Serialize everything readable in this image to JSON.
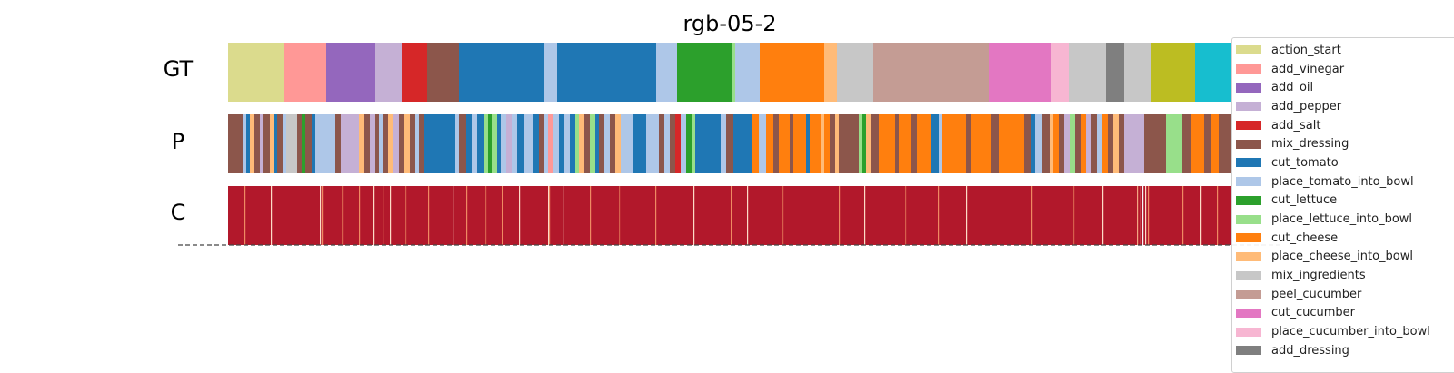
{
  "chart_data": {
    "type": "segmentation-timeline",
    "title": "rgb-05-2",
    "rows": [
      "GT",
      "P",
      "C"
    ],
    "legend": [
      {
        "label": "action_start",
        "color": "#dbdb8d"
      },
      {
        "label": "add_vinegar",
        "color": "#ff9896"
      },
      {
        "label": "add_oil",
        "color": "#9467bd"
      },
      {
        "label": "add_pepper",
        "color": "#c5b0d5"
      },
      {
        "label": "add_salt",
        "color": "#d62728"
      },
      {
        "label": "mix_dressing",
        "color": "#8c564b"
      },
      {
        "label": "cut_tomato",
        "color": "#1f77b4"
      },
      {
        "label": "place_tomato_into_bowl",
        "color": "#aec7e8"
      },
      {
        "label": "cut_lettuce",
        "color": "#2ca02c"
      },
      {
        "label": "place_lettuce_into_bowl",
        "color": "#98df8a"
      },
      {
        "label": "cut_cheese",
        "color": "#ff7f0e"
      },
      {
        "label": "place_cheese_into_bowl",
        "color": "#ffbb78"
      },
      {
        "label": "mix_ingredients",
        "color": "#c7c7c7"
      },
      {
        "label": "peel_cucumber",
        "color": "#c49c94"
      },
      {
        "label": "cut_cucumber",
        "color": "#e377c2"
      },
      {
        "label": "place_cucumber_into_bowl",
        "color": "#f7b6d2"
      },
      {
        "label": "add_dressing",
        "color": "#7f7f7f"
      }
    ],
    "gt_segments": [
      {
        "start": 0,
        "end": 62,
        "label": "action_start"
      },
      {
        "start": 62,
        "end": 108,
        "label": "add_vinegar"
      },
      {
        "start": 108,
        "end": 162,
        "label": "add_oil"
      },
      {
        "start": 162,
        "end": 191,
        "label": "add_pepper"
      },
      {
        "start": 191,
        "end": 219,
        "label": "add_salt"
      },
      {
        "start": 219,
        "end": 254,
        "label": "mix_dressing"
      },
      {
        "start": 254,
        "end": 348,
        "label": "cut_tomato"
      },
      {
        "start": 348,
        "end": 362,
        "label": "place_tomato_into_bowl"
      },
      {
        "start": 362,
        "end": 471,
        "label": "cut_tomato"
      },
      {
        "start": 471,
        "end": 494,
        "label": "place_tomato_into_bowl"
      },
      {
        "start": 494,
        "end": 555,
        "label": "cut_lettuce"
      },
      {
        "start": 555,
        "end": 558,
        "label": "place_lettuce_into_bowl"
      },
      {
        "start": 558,
        "end": 585,
        "label": "place_tomato_into_bowl"
      },
      {
        "start": 585,
        "end": 656,
        "label": "cut_cheese"
      },
      {
        "start": 656,
        "end": 670,
        "label": "place_cheese_into_bowl"
      },
      {
        "start": 670,
        "end": 710,
        "label": "mix_ingredients"
      },
      {
        "start": 710,
        "end": 837,
        "label": "peel_cucumber"
      },
      {
        "start": 837,
        "end": 906,
        "label": "cut_cucumber"
      },
      {
        "start": 906,
        "end": 925,
        "label": "place_cucumber_into_bowl"
      },
      {
        "start": 925,
        "end": 966,
        "label": "mix_ingredients"
      },
      {
        "start": 966,
        "end": 986,
        "label": "add_dressing"
      },
      {
        "start": 986,
        "end": 1016,
        "label": "mix_ingredients"
      },
      {
        "start": 1016,
        "end": 1064,
        "label": "unlisted-olive"
      },
      {
        "start": 1064,
        "end": 1105,
        "label": "unlisted-cyan"
      }
    ],
    "p_segments": [
      {
        "start": 0,
        "end": 16,
        "label": "mix_dressing"
      },
      {
        "start": 16,
        "end": 20,
        "label": "place_tomato_into_bowl"
      },
      {
        "start": 20,
        "end": 24,
        "label": "cut_tomato"
      },
      {
        "start": 24,
        "end": 28,
        "label": "place_cheese_into_bowl"
      },
      {
        "start": 28,
        "end": 35,
        "label": "mix_dressing"
      },
      {
        "start": 35,
        "end": 38,
        "label": "add_pepper"
      },
      {
        "start": 38,
        "end": 46,
        "label": "mix_dressing"
      },
      {
        "start": 46,
        "end": 50,
        "label": "place_cheese_into_bowl"
      },
      {
        "start": 50,
        "end": 54,
        "label": "cut_tomato"
      },
      {
        "start": 54,
        "end": 60,
        "label": "mix_dressing"
      },
      {
        "start": 60,
        "end": 64,
        "label": "place_tomato_into_bowl"
      },
      {
        "start": 64,
        "end": 76,
        "label": "mix_ingredients"
      },
      {
        "start": 76,
        "end": 81,
        "label": "mix_dressing"
      },
      {
        "start": 81,
        "end": 85,
        "label": "cut_lettuce"
      },
      {
        "start": 85,
        "end": 92,
        "label": "mix_dressing"
      },
      {
        "start": 92,
        "end": 96,
        "label": "cut_tomato"
      },
      {
        "start": 96,
        "end": 100,
        "label": "place_tomato_into_bowl"
      },
      {
        "start": 100,
        "end": 118,
        "label": "place_tomato_into_bowl"
      },
      {
        "start": 118,
        "end": 124,
        "label": "mix_dressing"
      },
      {
        "start": 124,
        "end": 144,
        "label": "add_pepper"
      },
      {
        "start": 144,
        "end": 150,
        "label": "place_cheese_into_bowl"
      },
      {
        "start": 150,
        "end": 156,
        "label": "mix_dressing"
      },
      {
        "start": 156,
        "end": 162,
        "label": "add_pepper"
      },
      {
        "start": 162,
        "end": 166,
        "label": "mix_dressing"
      },
      {
        "start": 166,
        "end": 170,
        "label": "place_tomato_into_bowl"
      },
      {
        "start": 170,
        "end": 176,
        "label": "mix_dressing"
      },
      {
        "start": 176,
        "end": 182,
        "label": "place_cheese_into_bowl"
      },
      {
        "start": 182,
        "end": 188,
        "label": "add_pepper"
      },
      {
        "start": 188,
        "end": 194,
        "label": "mix_dressing"
      },
      {
        "start": 194,
        "end": 200,
        "label": "place_cheese_into_bowl"
      },
      {
        "start": 200,
        "end": 206,
        "label": "mix_dressing"
      },
      {
        "start": 206,
        "end": 210,
        "label": "place_tomato_into_bowl"
      },
      {
        "start": 210,
        "end": 216,
        "label": "mix_dressing"
      },
      {
        "start": 216,
        "end": 250,
        "label": "cut_tomato"
      },
      {
        "start": 250,
        "end": 254,
        "label": "place_tomato_into_bowl"
      },
      {
        "start": 254,
        "end": 262,
        "label": "mix_dressing"
      },
      {
        "start": 262,
        "end": 268,
        "label": "cut_tomato"
      },
      {
        "start": 268,
        "end": 274,
        "label": "place_tomato_into_bowl"
      },
      {
        "start": 274,
        "end": 282,
        "label": "cut_tomato"
      },
      {
        "start": 282,
        "end": 286,
        "label": "place_lettuce_into_bowl"
      },
      {
        "start": 286,
        "end": 290,
        "label": "cut_lettuce"
      },
      {
        "start": 290,
        "end": 296,
        "label": "place_lettuce_into_bowl"
      },
      {
        "start": 296,
        "end": 300,
        "label": "cut_tomato"
      },
      {
        "start": 300,
        "end": 306,
        "label": "place_tomato_into_bowl"
      },
      {
        "start": 306,
        "end": 312,
        "label": "add_pepper"
      },
      {
        "start": 312,
        "end": 318,
        "label": "place_tomato_into_bowl"
      },
      {
        "start": 318,
        "end": 326,
        "label": "cut_tomato"
      },
      {
        "start": 326,
        "end": 336,
        "label": "place_tomato_into_bowl"
      },
      {
        "start": 336,
        "end": 342,
        "label": "cut_tomato"
      },
      {
        "start": 342,
        "end": 348,
        "label": "mix_dressing"
      },
      {
        "start": 348,
        "end": 352,
        "label": "place_tomato_into_bowl"
      },
      {
        "start": 352,
        "end": 358,
        "label": "add_vinegar"
      },
      {
        "start": 358,
        "end": 364,
        "label": "place_tomato_into_bowl"
      },
      {
        "start": 364,
        "end": 370,
        "label": "cut_tomato"
      },
      {
        "start": 370,
        "end": 376,
        "label": "place_tomato_into_bowl"
      },
      {
        "start": 376,
        "end": 382,
        "label": "cut_tomato"
      },
      {
        "start": 382,
        "end": 386,
        "label": "place_lettuce_into_bowl"
      },
      {
        "start": 386,
        "end": 392,
        "label": "place_cheese_into_bowl"
      },
      {
        "start": 392,
        "end": 398,
        "label": "mix_dressing"
      },
      {
        "start": 398,
        "end": 404,
        "label": "place_lettuce_into_bowl"
      },
      {
        "start": 404,
        "end": 408,
        "label": "cut_tomato"
      },
      {
        "start": 408,
        "end": 414,
        "label": "mix_dressing"
      },
      {
        "start": 414,
        "end": 420,
        "label": "place_tomato_into_bowl"
      },
      {
        "start": 420,
        "end": 426,
        "label": "mix_dressing"
      },
      {
        "start": 426,
        "end": 432,
        "label": "place_cheese_into_bowl"
      },
      {
        "start": 432,
        "end": 446,
        "label": "place_tomato_into_bowl"
      },
      {
        "start": 446,
        "end": 460,
        "label": "cut_tomato"
      },
      {
        "start": 460,
        "end": 474,
        "label": "place_tomato_into_bowl"
      },
      {
        "start": 474,
        "end": 480,
        "label": "mix_dressing"
      },
      {
        "start": 480,
        "end": 486,
        "label": "place_tomato_into_bowl"
      },
      {
        "start": 486,
        "end": 492,
        "label": "mix_dressing"
      },
      {
        "start": 492,
        "end": 498,
        "label": "add_salt"
      },
      {
        "start": 498,
        "end": 504,
        "label": "place_tomato_into_bowl"
      },
      {
        "start": 504,
        "end": 510,
        "label": "cut_lettuce"
      },
      {
        "start": 510,
        "end": 514,
        "label": "place_lettuce_into_bowl"
      },
      {
        "start": 514,
        "end": 542,
        "label": "cut_tomato"
      },
      {
        "start": 542,
        "end": 548,
        "label": "place_tomato_into_bowl"
      },
      {
        "start": 548,
        "end": 556,
        "label": "mix_dressing"
      },
      {
        "start": 556,
        "end": 576,
        "label": "cut_tomato"
      },
      {
        "start": 576,
        "end": 584,
        "label": "cut_cheese"
      },
      {
        "start": 584,
        "end": 592,
        "label": "place_tomato_into_bowl"
      },
      {
        "start": 592,
        "end": 600,
        "label": "cut_cheese"
      },
      {
        "start": 600,
        "end": 606,
        "label": "mix_dressing"
      },
      {
        "start": 606,
        "end": 618,
        "label": "cut_cheese"
      },
      {
        "start": 618,
        "end": 622,
        "label": "mix_dressing"
      },
      {
        "start": 622,
        "end": 636,
        "label": "cut_cheese"
      },
      {
        "start": 636,
        "end": 640,
        "label": "cut_tomato"
      },
      {
        "start": 640,
        "end": 652,
        "label": "cut_cheese"
      },
      {
        "start": 652,
        "end": 656,
        "label": "place_cheese_into_bowl"
      },
      {
        "start": 656,
        "end": 662,
        "label": "cut_cheese"
      },
      {
        "start": 662,
        "end": 668,
        "label": "mix_dressing"
      },
      {
        "start": 668,
        "end": 672,
        "label": "place_cheese_into_bowl"
      },
      {
        "start": 672,
        "end": 694,
        "label": "mix_dressing"
      },
      {
        "start": 694,
        "end": 698,
        "label": "place_lettuce_into_bowl"
      },
      {
        "start": 698,
        "end": 702,
        "label": "cut_lettuce"
      },
      {
        "start": 702,
        "end": 708,
        "label": "place_cheese_into_bowl"
      },
      {
        "start": 708,
        "end": 716,
        "label": "mix_dressing"
      },
      {
        "start": 716,
        "end": 734,
        "label": "cut_cheese"
      },
      {
        "start": 734,
        "end": 738,
        "label": "mix_dressing"
      },
      {
        "start": 738,
        "end": 752,
        "label": "cut_cheese"
      },
      {
        "start": 752,
        "end": 758,
        "label": "mix_dressing"
      },
      {
        "start": 758,
        "end": 774,
        "label": "cut_cheese"
      },
      {
        "start": 774,
        "end": 782,
        "label": "cut_tomato"
      },
      {
        "start": 782,
        "end": 786,
        "label": "place_tomato_into_bowl"
      },
      {
        "start": 786,
        "end": 812,
        "label": "cut_cheese"
      },
      {
        "start": 812,
        "end": 818,
        "label": "mix_dressing"
      },
      {
        "start": 818,
        "end": 840,
        "label": "cut_cheese"
      },
      {
        "start": 840,
        "end": 848,
        "label": "mix_dressing"
      },
      {
        "start": 848,
        "end": 876,
        "label": "cut_cheese"
      },
      {
        "start": 876,
        "end": 884,
        "label": "mix_dressing"
      },
      {
        "start": 884,
        "end": 888,
        "label": "cut_tomato"
      },
      {
        "start": 888,
        "end": 896,
        "label": "place_tomato_into_bowl"
      },
      {
        "start": 896,
        "end": 904,
        "label": "mix_dressing"
      },
      {
        "start": 904,
        "end": 908,
        "label": "place_cheese_into_bowl"
      },
      {
        "start": 908,
        "end": 914,
        "label": "cut_cheese"
      },
      {
        "start": 914,
        "end": 920,
        "label": "mix_dressing"
      },
      {
        "start": 920,
        "end": 926,
        "label": "add_pepper"
      },
      {
        "start": 926,
        "end": 932,
        "label": "place_lettuce_into_bowl"
      },
      {
        "start": 932,
        "end": 938,
        "label": "mix_dressing"
      },
      {
        "start": 938,
        "end": 944,
        "label": "cut_cheese"
      },
      {
        "start": 944,
        "end": 950,
        "label": "add_pepper"
      },
      {
        "start": 950,
        "end": 956,
        "label": "mix_dressing"
      },
      {
        "start": 956,
        "end": 962,
        "label": "place_tomato_into_bowl"
      },
      {
        "start": 962,
        "end": 968,
        "label": "cut_cheese"
      },
      {
        "start": 968,
        "end": 974,
        "label": "mix_dressing"
      },
      {
        "start": 974,
        "end": 980,
        "label": "place_cheese_into_bowl"
      },
      {
        "start": 980,
        "end": 986,
        "label": "mix_dressing"
      },
      {
        "start": 986,
        "end": 1008,
        "label": "add_pepper"
      },
      {
        "start": 1008,
        "end": 1032,
        "label": "mix_dressing"
      },
      {
        "start": 1032,
        "end": 1036,
        "label": "place_lettuce_into_bowl"
      },
      {
        "start": 1036,
        "end": 1050,
        "label": "place_lettuce_into_bowl"
      },
      {
        "start": 1050,
        "end": 1060,
        "label": "mix_dressing"
      },
      {
        "start": 1060,
        "end": 1074,
        "label": "cut_cheese"
      },
      {
        "start": 1074,
        "end": 1082,
        "label": "mix_dressing"
      },
      {
        "start": 1082,
        "end": 1090,
        "label": "cut_cheese"
      },
      {
        "start": 1090,
        "end": 1105,
        "label": "mix_dressing"
      }
    ],
    "c_confidence": {
      "base_color": "#b2182b",
      "highlights": [
        {
          "pos": 18,
          "color": "#ef8a62"
        },
        {
          "pos": 47,
          "color": "#fddbc7"
        },
        {
          "pos": 101,
          "color": "#fddbc7"
        },
        {
          "pos": 103,
          "color": "#ef8a62"
        },
        {
          "pos": 125,
          "color": "#d6604d"
        },
        {
          "pos": 144,
          "color": "#ef8a62"
        },
        {
          "pos": 160,
          "color": "#fddbc7"
        },
        {
          "pos": 170,
          "color": "#ef8a62"
        },
        {
          "pos": 178,
          "color": "#fddbc7"
        },
        {
          "pos": 195,
          "color": "#d6604d"
        },
        {
          "pos": 220,
          "color": "#ef8a62"
        },
        {
          "pos": 247,
          "color": "#fddbc7"
        },
        {
          "pos": 262,
          "color": "#ef8a62"
        },
        {
          "pos": 283,
          "color": "#d6604d"
        },
        {
          "pos": 301,
          "color": "#ef8a62"
        },
        {
          "pos": 320,
          "color": "#fddbc7"
        },
        {
          "pos": 352,
          "color": "#fddbc7"
        },
        {
          "pos": 353,
          "color": "#ef8a62"
        },
        {
          "pos": 368,
          "color": "#fddbc7"
        },
        {
          "pos": 398,
          "color": "#ef8a62"
        },
        {
          "pos": 430,
          "color": "#d6604d"
        },
        {
          "pos": 470,
          "color": "#ef8a62"
        },
        {
          "pos": 512,
          "color": "#fddbc7"
        },
        {
          "pos": 553,
          "color": "#ef8a62"
        },
        {
          "pos": 571,
          "color": "#fddbc7"
        },
        {
          "pos": 610,
          "color": "#d6604d"
        },
        {
          "pos": 672,
          "color": "#ef8a62"
        },
        {
          "pos": 700,
          "color": "#fddbc7"
        },
        {
          "pos": 745,
          "color": "#d6604d"
        },
        {
          "pos": 781,
          "color": "#ef8a62"
        },
        {
          "pos": 812,
          "color": "#fddbc7"
        },
        {
          "pos": 884,
          "color": "#ef8a62"
        },
        {
          "pos": 930,
          "color": "#d6604d"
        },
        {
          "pos": 962,
          "color": "#fddbc7"
        },
        {
          "pos": 1000,
          "color": "#f4a582"
        },
        {
          "pos": 1003,
          "color": "#fddbc7"
        },
        {
          "pos": 1006,
          "color": "#f7f7f7"
        },
        {
          "pos": 1009,
          "color": "#fddbc7"
        },
        {
          "pos": 1012,
          "color": "#ef8a62"
        },
        {
          "pos": 1050,
          "color": "#ef8a62"
        },
        {
          "pos": 1070,
          "color": "#fddbc7"
        },
        {
          "pos": 1088,
          "color": "#ef8a62"
        }
      ]
    }
  }
}
